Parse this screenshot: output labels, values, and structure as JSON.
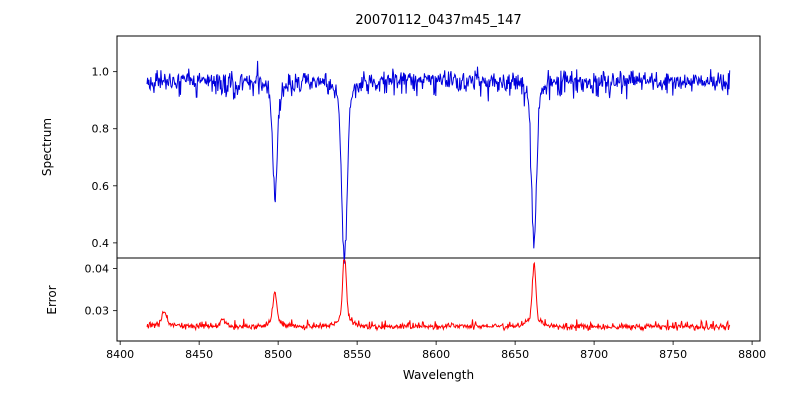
{
  "chart_data": {
    "type": "line",
    "title": "20070112_0437m45_147",
    "xlabel": "Wavelength",
    "xlim": [
      8398,
      8805
    ],
    "xticks": [
      8400,
      8450,
      8500,
      8550,
      8600,
      8650,
      8700,
      8750,
      8800
    ],
    "xtick_labels": [
      "8400",
      "8450",
      "8500",
      "8550",
      "8600",
      "8650",
      "8700",
      "8750",
      "8800"
    ],
    "x_range_data": [
      8417,
      8786
    ],
    "x_step": 0.4,
    "seed": 42,
    "grid": false,
    "legend": "none",
    "panels": [
      {
        "name": "spectrum",
        "ylabel": "Spectrum",
        "ylim": [
          0.347,
          1.125
        ],
        "yticks": [
          0.4,
          0.6,
          0.8,
          1.0
        ],
        "ytick_labels": [
          "0.4",
          "0.6",
          "0.8",
          "1.0"
        ],
        "color": "#0000dd",
        "continuum": 0.972,
        "noise_sigma": 0.016,
        "spike_prob": 0.3,
        "spike_max": 0.05,
        "clip_max": 1.055,
        "absorption_lines": [
          {
            "center": 8498,
            "depth": 0.37,
            "sigma": 1.4,
            "min_value": 0.6
          },
          {
            "center": 8542,
            "depth": 0.572,
            "sigma": 1.7,
            "min_value": 0.4
          },
          {
            "center": 8662,
            "depth": 0.532,
            "sigma": 1.5,
            "min_value": 0.44
          }
        ]
      },
      {
        "name": "error",
        "ylabel": "Error",
        "ylim": [
          0.0228,
          0.0425
        ],
        "yticks": [
          0.03,
          0.04
        ],
        "ytick_labels": [
          "0.03",
          "0.04"
        ],
        "color": "#ff0000",
        "baseline": 0.0262,
        "noise_sigma": 0.00035,
        "spike_prob": 0.12,
        "spike_max": 0.0012,
        "clip_max": 0.042,
        "peaks": [
          {
            "center": 8428,
            "amp": 0.0033,
            "sigma": 1.5,
            "max_value": 0.03
          },
          {
            "center": 8465,
            "amp": 0.0018,
            "sigma": 1.2,
            "max_value": 0.0285
          },
          {
            "center": 8498,
            "amp": 0.0072,
            "sigma": 1.2,
            "max_value": 0.0335
          },
          {
            "center": 8542,
            "amp": 0.0152,
            "sigma": 1.1,
            "max_value": 0.0415
          },
          {
            "center": 8662,
            "amp": 0.0127,
            "sigma": 1.1,
            "max_value": 0.039
          }
        ]
      }
    ]
  }
}
